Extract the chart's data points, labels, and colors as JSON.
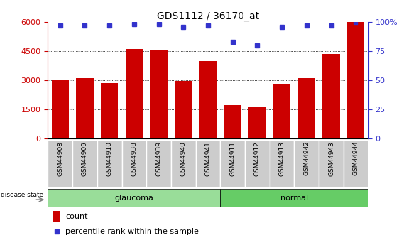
{
  "title": "GDS1112 / 36170_at",
  "categories": [
    "GSM44908",
    "GSM44909",
    "GSM44910",
    "GSM44938",
    "GSM44939",
    "GSM44940",
    "GSM44941",
    "GSM44911",
    "GSM44912",
    "GSM44913",
    "GSM44942",
    "GSM44943",
    "GSM44944"
  ],
  "counts": [
    3000,
    3100,
    2850,
    4600,
    4550,
    2950,
    4000,
    1700,
    1600,
    2800,
    3100,
    4350,
    6000
  ],
  "percentiles": [
    97,
    97,
    97,
    98,
    98,
    96,
    97,
    83,
    80,
    96,
    97,
    97,
    100
  ],
  "groups": [
    "glaucoma",
    "glaucoma",
    "glaucoma",
    "glaucoma",
    "glaucoma",
    "glaucoma",
    "glaucoma",
    "normal",
    "normal",
    "normal",
    "normal",
    "normal",
    "normal"
  ],
  "bar_color": "#cc0000",
  "dot_color": "#3333cc",
  "glaucoma_color": "#99dd99",
  "normal_color": "#66cc66",
  "tick_bg_color": "#cccccc",
  "bg_color": "#ffffff",
  "ylim_left": [
    0,
    6000
  ],
  "ylim_right": [
    0,
    100
  ],
  "yticks_left": [
    0,
    1500,
    3000,
    4500,
    6000
  ],
  "yticks_right": [
    0,
    25,
    50,
    75,
    100
  ],
  "grid_values": [
    1500,
    3000,
    4500
  ],
  "left_axis_color": "#cc0000",
  "right_axis_color": "#3333cc"
}
